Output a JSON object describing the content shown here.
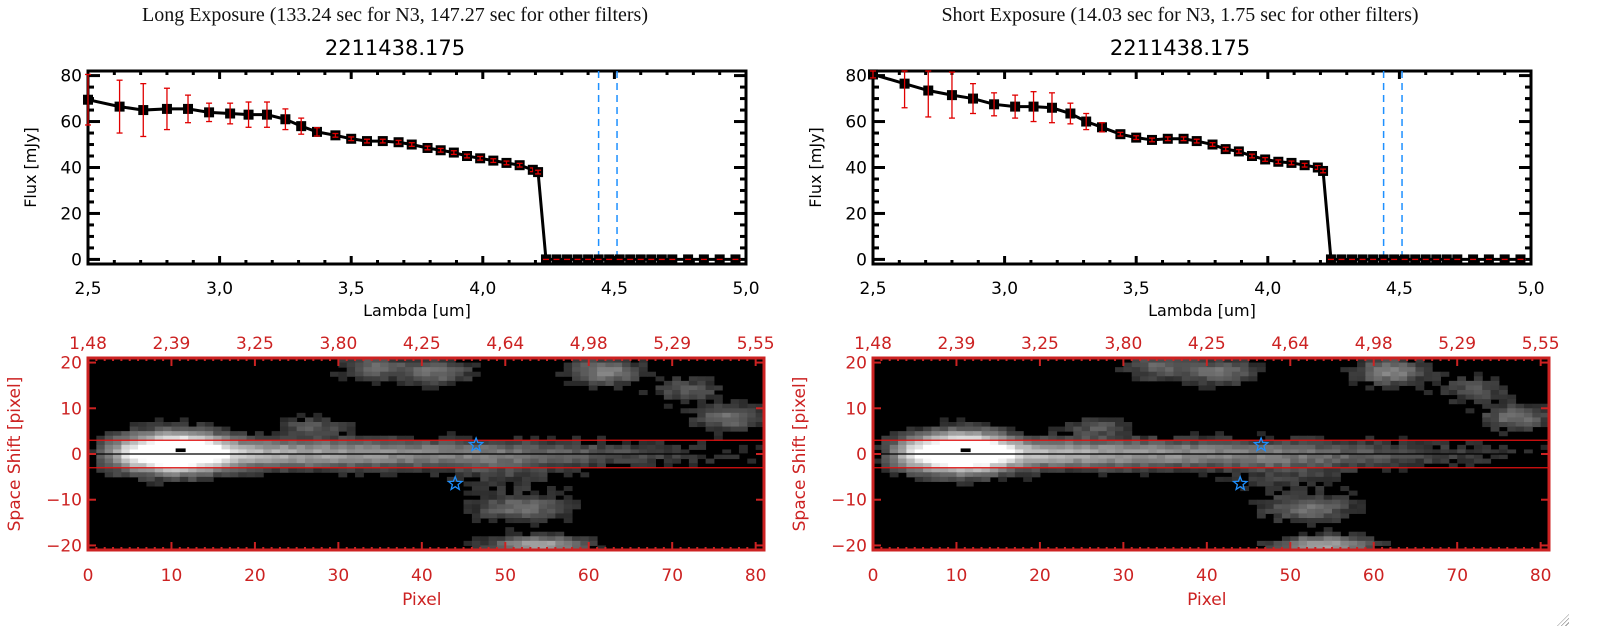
{
  "panels": [
    {
      "title": "Long Exposure (133.24 sec for N3, 147.27 sec for other filters)",
      "object_id": "2211438.175"
    },
    {
      "title": "Short Exposure (14.03 sec for N3, 1.75 sec for other filters)",
      "object_id": "2211438.175"
    }
  ],
  "colors": {
    "axis": "#000000",
    "errorbar": "#e00000",
    "marker": "#000000",
    "marker_inner": "#8b1a1a",
    "vline": "#1e90ff",
    "image_axis": "#cc2222",
    "star": "#1e90ff"
  },
  "chart_data": [
    {
      "type": "line",
      "panel": "long",
      "title": "2211438.175",
      "xlabel": "Lambda [um]",
      "ylabel": "Flux [mJy]",
      "xlim": [
        2.5,
        5.0
      ],
      "ylim": [
        -2,
        82
      ],
      "xticks": [
        "2.5",
        "3.0",
        "3.5",
        "4.0",
        "4.5",
        "5.0"
      ],
      "xtick_values": [
        2.5,
        3.0,
        3.5,
        4.0,
        4.5,
        5.0
      ],
      "yticks": [
        "0",
        "20",
        "40",
        "60",
        "80"
      ],
      "ytick_values": [
        0,
        20,
        40,
        60,
        80
      ],
      "vlines": [
        4.44,
        4.51
      ],
      "series": [
        {
          "name": "flux",
          "x": [
            2.5,
            2.62,
            2.71,
            2.8,
            2.88,
            2.96,
            3.04,
            3.11,
            3.18,
            3.25,
            3.31,
            3.37,
            3.44,
            3.5,
            3.56,
            3.62,
            3.68,
            3.73,
            3.79,
            3.84,
            3.89,
            3.94,
            3.99,
            4.04,
            4.09,
            4.14,
            4.19,
            4.21,
            4.24,
            4.28,
            4.32,
            4.36,
            4.4,
            4.44,
            4.48,
            4.52,
            4.56,
            4.6,
            4.64,
            4.68,
            4.72,
            4.78,
            4.84,
            4.9,
            4.96
          ],
          "y": [
            69.5,
            66.5,
            65.0,
            65.5,
            65.5,
            64.0,
            63.5,
            63.0,
            63.0,
            61.0,
            58.0,
            55.5,
            54.0,
            52.5,
            51.5,
            51.5,
            51.0,
            50.0,
            48.5,
            47.5,
            46.5,
            45.0,
            44.0,
            43.0,
            42.0,
            41.0,
            39.0,
            38.0,
            0,
            0,
            0,
            0,
            0,
            0,
            0,
            0,
            0,
            0,
            0,
            0,
            0,
            0,
            0,
            0,
            0
          ],
          "err": [
            11,
            11.5,
            11.5,
            9,
            6,
            4,
            4.5,
            5.5,
            5.5,
            4.5,
            3.5,
            1.8,
            0.8,
            0.8,
            0.8,
            0.8,
            0.8,
            0.8,
            0.8,
            0.8,
            0.8,
            0.8,
            0.8,
            0.8,
            0.8,
            0.8,
            0.8,
            0.8,
            0,
            0,
            0,
            0,
            0,
            0,
            0,
            0,
            0,
            0,
            0,
            0,
            0,
            0,
            0,
            0,
            0
          ]
        }
      ]
    },
    {
      "type": "heatmap",
      "panel": "long",
      "xlabel": "Pixel",
      "ylabel": "Space Shift [pixel]",
      "xlim": [
        0,
        81
      ],
      "ylim": [
        -21,
        21
      ],
      "xticks": [
        "0",
        "10",
        "20",
        "30",
        "40",
        "50",
        "60",
        "70",
        "80"
      ],
      "xtick_values": [
        0,
        10,
        20,
        30,
        40,
        50,
        60,
        70,
        80
      ],
      "top_xticks": [
        "1.48",
        "2.39",
        "3.25",
        "3.80",
        "4.25",
        "4.64",
        "4.98",
        "5.29",
        "5.55"
      ],
      "yticks": [
        "-20",
        "-10",
        "0",
        "10",
        "20"
      ],
      "ytick_values": [
        -20,
        -10,
        0,
        10,
        20
      ],
      "aperture_lines": [
        3,
        -3
      ],
      "center_line": 0,
      "stars": [
        {
          "x": 46.5,
          "y": 2
        },
        {
          "x": 44,
          "y": -6.5
        }
      ]
    },
    {
      "type": "line",
      "panel": "short",
      "title": "2211438.175",
      "xlabel": "Lambda [um]",
      "ylabel": "Flux [mJy]",
      "xlim": [
        2.5,
        5.0
      ],
      "ylim": [
        -2,
        82
      ],
      "xticks": [
        "2.5",
        "3.0",
        "3.5",
        "4.0",
        "4.5",
        "5.0"
      ],
      "xtick_values": [
        2.5,
        3.0,
        3.5,
        4.0,
        4.5,
        5.0
      ],
      "yticks": [
        "0",
        "20",
        "40",
        "60",
        "80"
      ],
      "ytick_values": [
        0,
        20,
        40,
        60,
        80
      ],
      "vlines": [
        4.44,
        4.51
      ],
      "series": [
        {
          "name": "flux",
          "x": [
            2.5,
            2.62,
            2.71,
            2.8,
            2.88,
            2.96,
            3.04,
            3.11,
            3.18,
            3.25,
            3.31,
            3.37,
            3.44,
            3.5,
            3.56,
            3.62,
            3.68,
            3.73,
            3.79,
            3.84,
            3.89,
            3.94,
            3.99,
            4.04,
            4.09,
            4.14,
            4.19,
            4.21,
            4.24,
            4.28,
            4.32,
            4.36,
            4.4,
            4.44,
            4.48,
            4.52,
            4.56,
            4.6,
            4.64,
            4.68,
            4.72,
            4.78,
            4.84,
            4.9,
            4.96
          ],
          "y": [
            80.5,
            76.5,
            73.5,
            71.5,
            70.0,
            67.5,
            66.5,
            66.5,
            66.0,
            63.5,
            60.0,
            57.5,
            54.5,
            53.0,
            52.0,
            52.5,
            52.5,
            51.5,
            50.0,
            48.0,
            47.0,
            45.0,
            43.5,
            42.5,
            42.0,
            41.0,
            40.0,
            38.5,
            0,
            0,
            0,
            0,
            0,
            0,
            0,
            0,
            0,
            0,
            0,
            0,
            0,
            0,
            0,
            0,
            0
          ],
          "err": [
            1.5,
            10.5,
            11.5,
            10,
            6.5,
            5,
            5,
            6.5,
            6.5,
            4.5,
            3.5,
            2,
            0.8,
            0.8,
            0.8,
            0.8,
            0.8,
            0.8,
            0.8,
            0.8,
            0.8,
            0.8,
            0.8,
            0.8,
            0.8,
            0.8,
            0.8,
            0.8,
            0,
            0,
            0,
            0,
            0,
            0,
            0,
            0,
            0,
            0,
            0,
            0,
            0,
            0,
            0,
            0,
            0
          ]
        }
      ]
    },
    {
      "type": "heatmap",
      "panel": "short",
      "xlabel": "Pixel",
      "ylabel": "Space Shift [pixel]",
      "xlim": [
        0,
        81
      ],
      "ylim": [
        -21,
        21
      ],
      "xticks": [
        "0",
        "10",
        "20",
        "30",
        "40",
        "50",
        "60",
        "70",
        "80"
      ],
      "xtick_values": [
        0,
        10,
        20,
        30,
        40,
        50,
        60,
        70,
        80
      ],
      "top_xticks": [
        "1.48",
        "2.39",
        "3.25",
        "3.80",
        "4.25",
        "4.64",
        "4.98",
        "5.29",
        "5.55"
      ],
      "yticks": [
        "-20",
        "-10",
        "0",
        "10",
        "20"
      ],
      "ytick_values": [
        -20,
        -10,
        0,
        10,
        20
      ],
      "aperture_lines": [
        3,
        -3
      ],
      "center_line": 0,
      "stars": [
        {
          "x": 46.5,
          "y": 2
        },
        {
          "x": 44,
          "y": -6.5
        }
      ]
    }
  ]
}
